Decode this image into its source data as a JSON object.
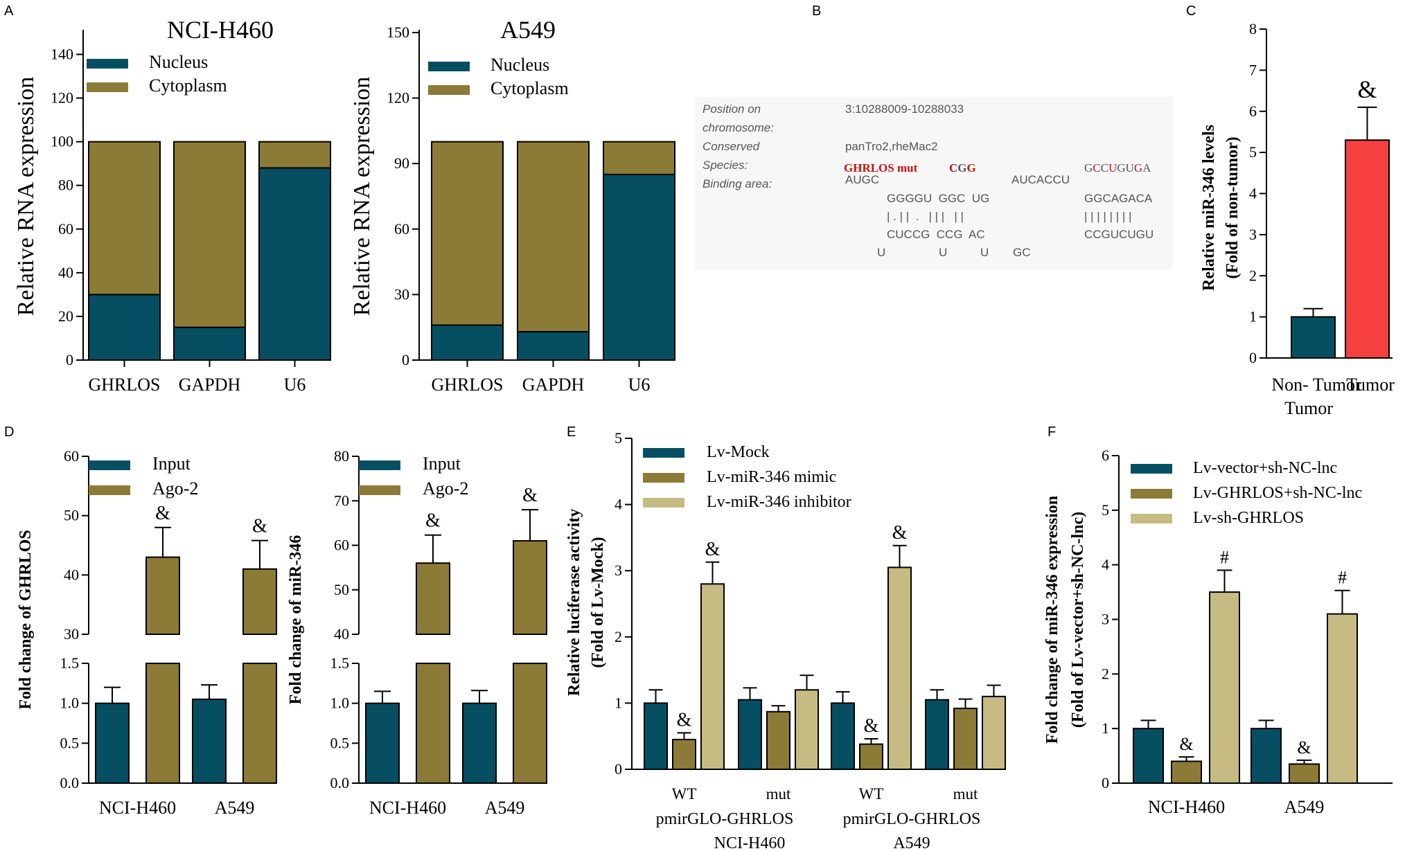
{
  "colors": {
    "nucleus": "#064f63",
    "cytoplasm": "#8c7a37",
    "input": "#064f63",
    "ago2": "#8c7a37",
    "mock": "#064f63",
    "mimic": "#8c7a37",
    "inhibitor": "#c7bb84",
    "tumor": "#f64040",
    "nontumor": "#064f63",
    "highlight": "#cc1111"
  },
  "panels": {
    "A": "A",
    "B": "B",
    "C": "C",
    "D": "D",
    "E": "E",
    "F": "F"
  },
  "chart_data": [
    {
      "id": "A1",
      "type": "bar",
      "stacked": true,
      "title": "NCI-H460",
      "ylabel": "Relative RNA expression",
      "ylim": [
        0,
        150
      ],
      "yticks": [
        0,
        20,
        40,
        60,
        80,
        100,
        120,
        140
      ],
      "categories": [
        "GHRLOS",
        "GAPDH",
        "U6"
      ],
      "series": [
        {
          "name": "Nucleus",
          "values": [
            30,
            15,
            88
          ]
        },
        {
          "name": "Cytoplasm",
          "values": [
            70,
            85,
            12
          ]
        }
      ]
    },
    {
      "id": "A2",
      "type": "bar",
      "stacked": true,
      "title": "A549",
      "ylabel": "Relative RNA expression",
      "ylim": [
        0,
        150
      ],
      "yticks": [
        0,
        30,
        60,
        90,
        120,
        150
      ],
      "categories": [
        "GHRLOS",
        "GAPDH",
        "U6"
      ],
      "series": [
        {
          "name": "Nucleus",
          "values": [
            16,
            13,
            85
          ]
        },
        {
          "name": "Cytoplasm",
          "values": [
            84,
            87,
            15
          ]
        }
      ]
    },
    {
      "id": "C",
      "type": "bar",
      "ylabel": "Relative miR-346 levels",
      "ylabel2": "(Fold of non-tumor)",
      "ylim": [
        0,
        8
      ],
      "yticks": [
        0,
        1,
        2,
        3,
        4,
        5,
        6,
        7,
        8
      ],
      "categories": [
        "Non- Tumor",
        "Tumor"
      ],
      "category_line2": [
        "Tumor",
        ""
      ],
      "values": [
        1.0,
        5.3
      ],
      "errors": [
        0.2,
        0.8
      ],
      "annotations": [
        "",
        "&"
      ]
    },
    {
      "id": "D1",
      "type": "bar",
      "broken_axis": true,
      "ylabel": "Fold change of GHRLOS",
      "lower_ylim": [
        0,
        1.5
      ],
      "lower_yticks": [
        "0.0",
        "0.5",
        "1.0",
        "1.5"
      ],
      "upper_ylim": [
        30,
        60
      ],
      "upper_yticks": [
        "30",
        "40",
        "50",
        "60"
      ],
      "categories": [
        "NCI-H460",
        "A549"
      ],
      "series": [
        {
          "name": "Input",
          "values": [
            1.0,
            1.05
          ],
          "errors": [
            0.2,
            0.18
          ]
        },
        {
          "name": "Ago-2",
          "values": [
            43,
            41
          ],
          "errors": [
            5,
            4.8
          ]
        }
      ],
      "annotations": [
        "&",
        "&"
      ]
    },
    {
      "id": "D2",
      "type": "bar",
      "broken_axis": true,
      "ylabel": "Fold change of miR-346",
      "lower_ylim": [
        0,
        1.5
      ],
      "lower_yticks": [
        "0.0",
        "0.5",
        "1.0",
        "1.5"
      ],
      "upper_ylim": [
        40,
        80
      ],
      "upper_yticks": [
        "40",
        "50",
        "60",
        "70",
        "80"
      ],
      "categories": [
        "NCI-H460",
        "A549"
      ],
      "series": [
        {
          "name": "Input",
          "values": [
            1.0,
            1.0
          ],
          "errors": [
            0.15,
            0.16
          ]
        },
        {
          "name": "Ago-2",
          "values": [
            56,
            61
          ],
          "errors": [
            6.3,
            7
          ]
        }
      ],
      "annotations": [
        "&",
        "&"
      ]
    },
    {
      "id": "E",
      "type": "bar",
      "ylabel": "Relative luciferase activity",
      "ylabel2": "(Fold of Lv-Mock)",
      "ylim": [
        0,
        5
      ],
      "yticks": [
        0,
        1,
        2,
        3,
        4,
        5
      ],
      "groups": [
        "WT",
        "mut",
        "WT",
        "mut"
      ],
      "group_lines": [
        "pmirGLO-GHRLOS",
        "pmirGLO-GHRLOS"
      ],
      "cell_lines": [
        "NCI-H460",
        "A549"
      ],
      "series": [
        {
          "name": "Lv-Mock",
          "values": [
            1.0,
            1.05,
            1.0,
            1.05
          ],
          "errors": [
            0.2,
            0.18,
            0.17,
            0.15
          ]
        },
        {
          "name": "Lv-miR-346 mimic",
          "values": [
            0.45,
            0.87,
            0.38,
            0.92
          ],
          "errors": [
            0.1,
            0.09,
            0.08,
            0.14
          ]
        },
        {
          "name": "Lv-miR-346 inhibitor",
          "values": [
            2.8,
            1.2,
            3.05,
            1.1
          ],
          "errors": [
            0.33,
            0.22,
            0.33,
            0.17
          ]
        }
      ],
      "annotations": [
        [
          "",
          "&",
          "&"
        ],
        [
          "",
          "",
          ""
        ],
        [
          "",
          "&",
          "&"
        ],
        [
          "",
          "",
          ""
        ]
      ]
    },
    {
      "id": "F",
      "type": "bar",
      "ylabel": "Fold change of miR-346 expression",
      "ylabel2": "(Fold of Lv-vector+sh-NC-lnc)",
      "ylim": [
        0,
        6
      ],
      "yticks": [
        0,
        1,
        2,
        3,
        4,
        5,
        6
      ],
      "categories": [
        "NCI-H460",
        "A549"
      ],
      "series": [
        {
          "name": "Lv-vector+sh-NC-lnc",
          "values": [
            1.0,
            1.0
          ],
          "errors": [
            0.15,
            0.15
          ]
        },
        {
          "name": "Lv-GHRLOS+sh-NC-lnc",
          "values": [
            0.4,
            0.35
          ],
          "errors": [
            0.08,
            0.07
          ]
        },
        {
          "name": "Lv-sh-GHRLOS",
          "values": [
            3.5,
            3.1
          ],
          "errors": [
            0.4,
            0.43
          ]
        }
      ],
      "annotations": [
        [
          "",
          "&",
          "#"
        ],
        [
          "",
          "&",
          "#"
        ]
      ]
    }
  ],
  "binding": {
    "labels": [
      "Position on",
      "chromosome:",
      "Conserved",
      "Species:",
      "Binding area:"
    ],
    "position": "3:10288009-10288033",
    "conserved": "panTro2,rheMac2",
    "mut_label": "GHRLOS mut",
    "row1": [
      {
        "t": "C",
        "red": true
      },
      {
        "t": "G",
        "red": false
      },
      {
        "t": "G",
        "red": true
      }
    ],
    "row1b": [
      {
        "t": "G",
        "red": false
      },
      {
        "t": "C",
        "red": true
      },
      {
        "t": "C",
        "red": false
      },
      {
        "t": "U",
        "red": true
      },
      {
        "t": "G",
        "red": false
      },
      {
        "t": "U",
        "red": false
      },
      {
        "t": "G",
        "red": true
      },
      {
        "t": "A",
        "red": false
      }
    ],
    "lines": [
      {
        "x": 1220,
        "y": 265,
        "t": "AUGC"
      },
      {
        "x": 1460,
        "y": 265,
        "t": "AUCACCU"
      },
      {
        "x": 1280,
        "y": 292,
        "t": "GGGGU  GGC  UG"
      },
      {
        "x": 1565,
        "y": 292,
        "t": "GGCAGACA"
      },
      {
        "x": 1280,
        "y": 318,
        "t": "| . | |  .   | | |   | |"
      },
      {
        "x": 1565,
        "y": 318,
        "t": "| | | | | | | |"
      },
      {
        "x": 1280,
        "y": 344,
        "t": "CUCCG  CCG  AC"
      },
      {
        "x": 1565,
        "y": 344,
        "t": "CCGUCUGU"
      },
      {
        "x": 1266,
        "y": 370,
        "t": "U"
      },
      {
        "x": 1355,
        "y": 370,
        "t": "U"
      },
      {
        "x": 1415,
        "y": 370,
        "t": "U"
      },
      {
        "x": 1462,
        "y": 370,
        "t": "GC"
      }
    ]
  }
}
